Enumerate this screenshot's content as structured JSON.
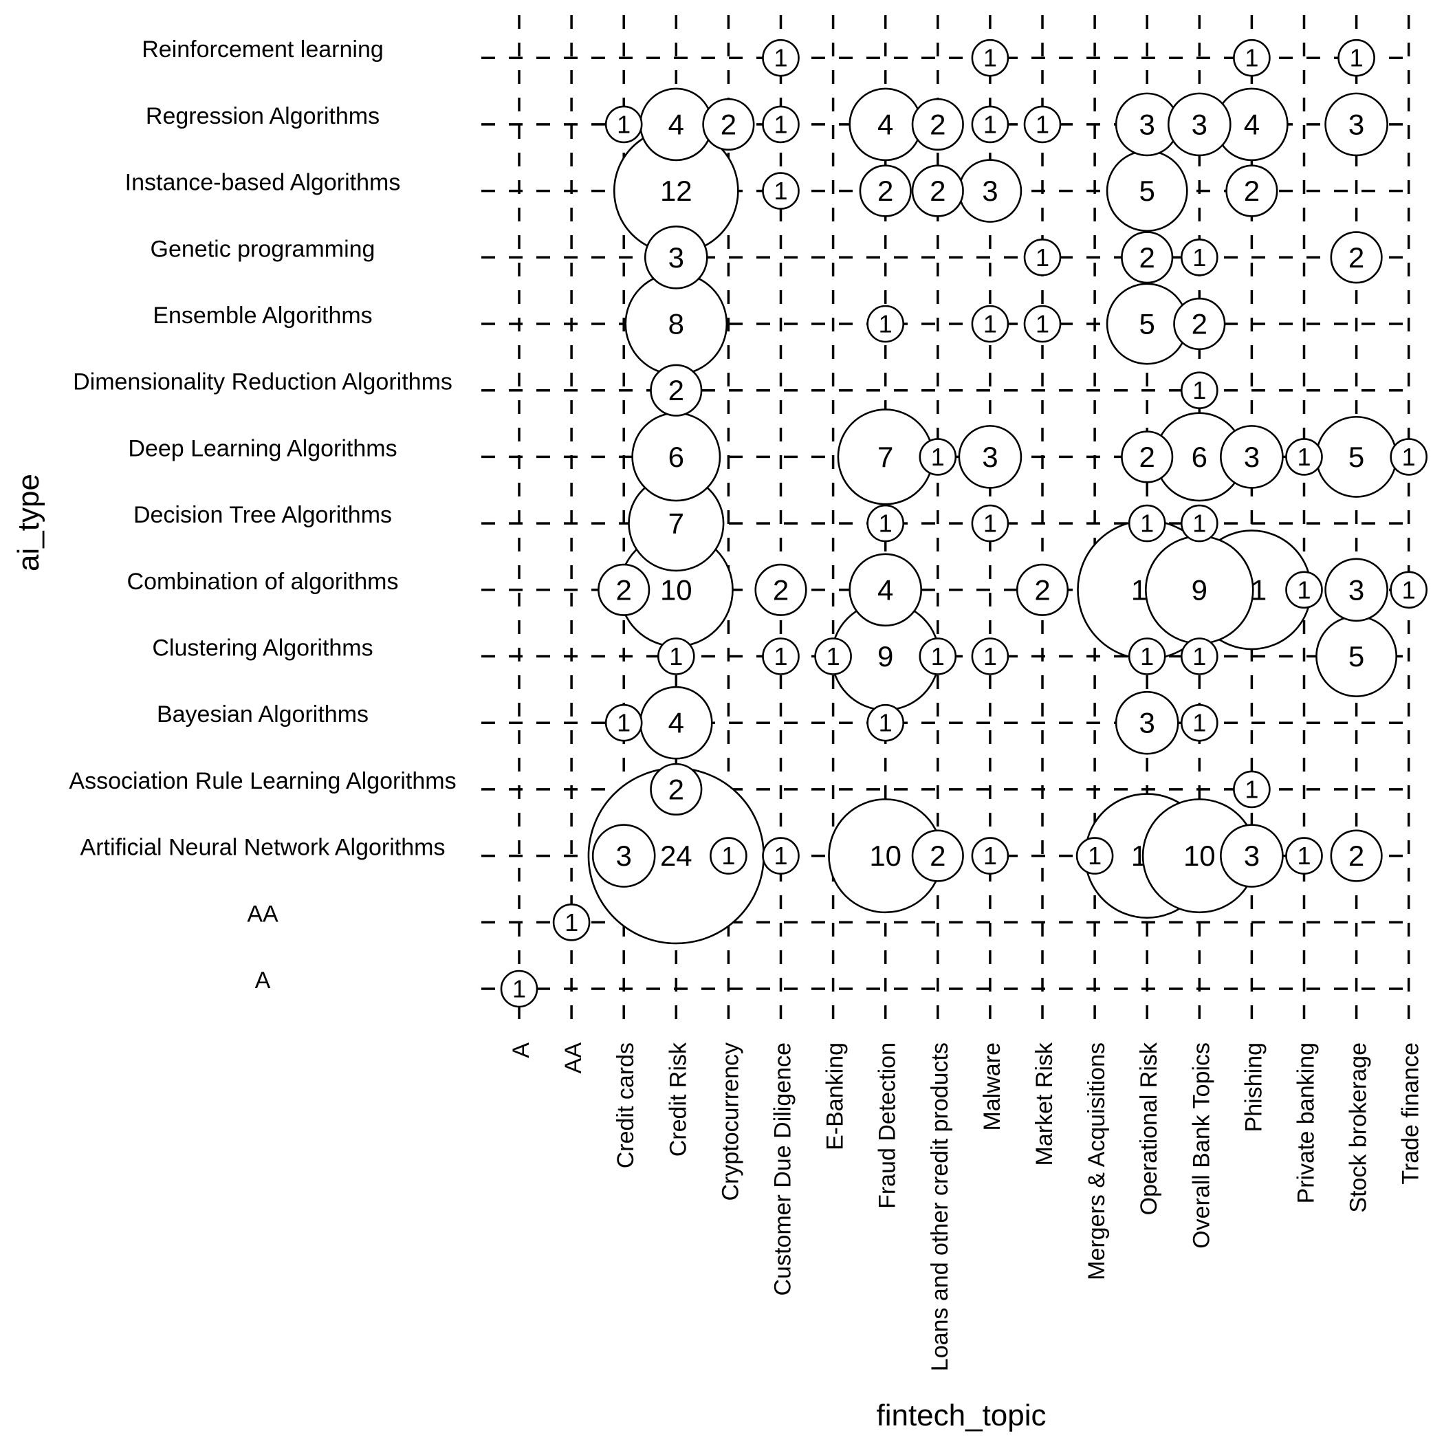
{
  "chart_data": {
    "type": "scatter",
    "xlabel": "fintech_topic",
    "ylabel": "ai_type",
    "x_categories": [
      "A",
      "AA",
      "Credit cards",
      "Credit Risk",
      "Cryptocurrency",
      "Customer Due Diligence",
      "E-Banking",
      "Fraud Detection",
      "Loans and other credit products",
      "Malware",
      "Market Risk",
      "Mergers & Acquisitions",
      "Operational Risk",
      "Overall Bank Topics",
      "Phishing",
      "Private banking",
      "Stock brokerage",
      "Trade finance"
    ],
    "y_categories": [
      "A",
      "AA",
      "Artificial Neural Network Algorithms",
      "Association Rule Learning Algorithms",
      "Bayesian Algorithms",
      "Clustering Algorithms",
      "Combination of algorithms",
      "Decision Tree Algorithms",
      "Deep Learning Algorithms",
      "Dimensionality Reduction Algorithms",
      "Ensemble Algorithms",
      "Genetic programming",
      "Instance-based Algorithms",
      "Regression Algorithms",
      "Reinforcement learning"
    ],
    "grid": true,
    "points": [
      {
        "x": "A",
        "y": "A",
        "count": 1
      },
      {
        "x": "AA",
        "y": "AA",
        "count": 1
      },
      {
        "x": "Credit Risk",
        "y": "Artificial Neural Network Algorithms",
        "count": 24
      },
      {
        "x": "Credit cards",
        "y": "Artificial Neural Network Algorithms",
        "count": 3
      },
      {
        "x": "Cryptocurrency",
        "y": "Artificial Neural Network Algorithms",
        "count": 1
      },
      {
        "x": "Customer Due Diligence",
        "y": "Artificial Neural Network Algorithms",
        "count": 1
      },
      {
        "x": "Fraud Detection",
        "y": "Artificial Neural Network Algorithms",
        "count": 10
      },
      {
        "x": "Loans and other credit products",
        "y": "Artificial Neural Network Algorithms",
        "count": 2
      },
      {
        "x": "Malware",
        "y": "Artificial Neural Network Algorithms",
        "count": 1
      },
      {
        "x": "Mergers & Acquisitions",
        "y": "Artificial Neural Network Algorithms",
        "count": 1
      },
      {
        "x": "Overall Bank Topics",
        "y": "Artificial Neural Network Algorithms",
        "count": 10
      },
      {
        "x": "Operational Risk",
        "y": "Artificial Neural Network Algorithms",
        "count": 12
      },
      {
        "x": "Phishing",
        "y": "Artificial Neural Network Algorithms",
        "count": 3
      },
      {
        "x": "Private banking",
        "y": "Artificial Neural Network Algorithms",
        "count": 1
      },
      {
        "x": "Stock brokerage",
        "y": "Artificial Neural Network Algorithms",
        "count": 2
      },
      {
        "x": "Credit Risk",
        "y": "Association Rule Learning Algorithms",
        "count": 2
      },
      {
        "x": "Phishing",
        "y": "Association Rule Learning Algorithms",
        "count": 1
      },
      {
        "x": "Credit cards",
        "y": "Bayesian Algorithms",
        "count": 1
      },
      {
        "x": "Credit Risk",
        "y": "Bayesian Algorithms",
        "count": 4
      },
      {
        "x": "Fraud Detection",
        "y": "Bayesian Algorithms",
        "count": 1
      },
      {
        "x": "Operational Risk",
        "y": "Bayesian Algorithms",
        "count": 3
      },
      {
        "x": "Overall Bank Topics",
        "y": "Bayesian Algorithms",
        "count": 1
      },
      {
        "x": "Credit Risk",
        "y": "Clustering Algorithms",
        "count": 1
      },
      {
        "x": "Customer Due Diligence",
        "y": "Clustering Algorithms",
        "count": 1
      },
      {
        "x": "E-Banking",
        "y": "Clustering Algorithms",
        "count": 1
      },
      {
        "x": "Loans and other credit products",
        "y": "Clustering Algorithms",
        "count": 1
      },
      {
        "x": "Fraud Detection",
        "y": "Clustering Algorithms",
        "count": 9
      },
      {
        "x": "Malware",
        "y": "Clustering Algorithms",
        "count": 1
      },
      {
        "x": "Operational Risk",
        "y": "Clustering Algorithms",
        "count": 1
      },
      {
        "x": "Overall Bank Topics",
        "y": "Clustering Algorithms",
        "count": 1
      },
      {
        "x": "Stock brokerage",
        "y": "Clustering Algorithms",
        "count": 5
      },
      {
        "x": "Credit Risk",
        "y": "Combination of algorithms",
        "count": 10
      },
      {
        "x": "Credit cards",
        "y": "Combination of algorithms",
        "count": 2
      },
      {
        "x": "Customer Due Diligence",
        "y": "Combination of algorithms",
        "count": 2
      },
      {
        "x": "Fraud Detection",
        "y": "Combination of algorithms",
        "count": 4
      },
      {
        "x": "Market Risk",
        "y": "Combination of algorithms",
        "count": 2
      },
      {
        "x": "Operational Risk",
        "y": "Combination of algorithms",
        "count": 15
      },
      {
        "x": "Phishing",
        "y": "Combination of algorithms",
        "count": 11
      },
      {
        "x": "Overall Bank Topics",
        "y": "Combination of algorithms",
        "count": 9
      },
      {
        "x": "Private banking",
        "y": "Combination of algorithms",
        "count": 1
      },
      {
        "x": "Stock brokerage",
        "y": "Combination of algorithms",
        "count": 3
      },
      {
        "x": "Trade finance",
        "y": "Combination of algorithms",
        "count": 1
      },
      {
        "x": "Credit Risk",
        "y": "Decision Tree Algorithms",
        "count": 7
      },
      {
        "x": "Fraud Detection",
        "y": "Decision Tree Algorithms",
        "count": 1
      },
      {
        "x": "Malware",
        "y": "Decision Tree Algorithms",
        "count": 1
      },
      {
        "x": "Operational Risk",
        "y": "Decision Tree Algorithms",
        "count": 1
      },
      {
        "x": "Overall Bank Topics",
        "y": "Decision Tree Algorithms",
        "count": 1
      },
      {
        "x": "Credit Risk",
        "y": "Deep Learning Algorithms",
        "count": 6
      },
      {
        "x": "Loans and other credit products",
        "y": "Deep Learning Algorithms",
        "count": 1
      },
      {
        "x": "Fraud Detection",
        "y": "Deep Learning Algorithms",
        "count": 7
      },
      {
        "x": "Malware",
        "y": "Deep Learning Algorithms",
        "count": 3
      },
      {
        "x": "Operational Risk",
        "y": "Deep Learning Algorithms",
        "count": 2
      },
      {
        "x": "Phishing",
        "y": "Deep Learning Algorithms",
        "count": 3
      },
      {
        "x": "Overall Bank Topics",
        "y": "Deep Learning Algorithms",
        "count": 6
      },
      {
        "x": "Private banking",
        "y": "Deep Learning Algorithms",
        "count": 1
      },
      {
        "x": "Trade finance",
        "y": "Deep Learning Algorithms",
        "count": 1
      },
      {
        "x": "Stock brokerage",
        "y": "Deep Learning Algorithms",
        "count": 5
      },
      {
        "x": "Credit Risk",
        "y": "Dimensionality Reduction Algorithms",
        "count": 2
      },
      {
        "x": "Overall Bank Topics",
        "y": "Dimensionality Reduction Algorithms",
        "count": 1
      },
      {
        "x": "Credit Risk",
        "y": "Ensemble Algorithms",
        "count": 8
      },
      {
        "x": "Fraud Detection",
        "y": "Ensemble Algorithms",
        "count": 1
      },
      {
        "x": "Malware",
        "y": "Ensemble Algorithms",
        "count": 1
      },
      {
        "x": "Market Risk",
        "y": "Ensemble Algorithms",
        "count": 1
      },
      {
        "x": "Operational Risk",
        "y": "Ensemble Algorithms",
        "count": 5
      },
      {
        "x": "Overall Bank Topics",
        "y": "Ensemble Algorithms",
        "count": 2
      },
      {
        "x": "Credit Risk",
        "y": "Genetic programming",
        "count": 3
      },
      {
        "x": "Market Risk",
        "y": "Genetic programming",
        "count": 1
      },
      {
        "x": "Operational Risk",
        "y": "Genetic programming",
        "count": 2
      },
      {
        "x": "Overall Bank Topics",
        "y": "Genetic programming",
        "count": 1
      },
      {
        "x": "Stock brokerage",
        "y": "Genetic programming",
        "count": 2
      },
      {
        "x": "Credit Risk",
        "y": "Instance-based Algorithms",
        "count": 12
      },
      {
        "x": "Customer Due Diligence",
        "y": "Instance-based Algorithms",
        "count": 1
      },
      {
        "x": "Fraud Detection",
        "y": "Instance-based Algorithms",
        "count": 2
      },
      {
        "x": "Loans and other credit products",
        "y": "Instance-based Algorithms",
        "count": 2
      },
      {
        "x": "Malware",
        "y": "Instance-based Algorithms",
        "count": 3
      },
      {
        "x": "Operational Risk",
        "y": "Instance-based Algorithms",
        "count": 5
      },
      {
        "x": "Phishing",
        "y": "Instance-based Algorithms",
        "count": 2
      },
      {
        "x": "Credit cards",
        "y": "Regression Algorithms",
        "count": 1
      },
      {
        "x": "Credit Risk",
        "y": "Regression Algorithms",
        "count": 4
      },
      {
        "x": "Cryptocurrency",
        "y": "Regression Algorithms",
        "count": 2
      },
      {
        "x": "Customer Due Diligence",
        "y": "Regression Algorithms",
        "count": 1
      },
      {
        "x": "Fraud Detection",
        "y": "Regression Algorithms",
        "count": 4
      },
      {
        "x": "Loans and other credit products",
        "y": "Regression Algorithms",
        "count": 2
      },
      {
        "x": "Malware",
        "y": "Regression Algorithms",
        "count": 1
      },
      {
        "x": "Market Risk",
        "y": "Regression Algorithms",
        "count": 1
      },
      {
        "x": "Operational Risk",
        "y": "Regression Algorithms",
        "count": 3
      },
      {
        "x": "Overall Bank Topics",
        "y": "Regression Algorithms",
        "count": 3
      },
      {
        "x": "Phishing",
        "y": "Regression Algorithms",
        "count": 4
      },
      {
        "x": "Stock brokerage",
        "y": "Regression Algorithms",
        "count": 3
      },
      {
        "x": "Customer Due Diligence",
        "y": "Reinforcement learning",
        "count": 1
      },
      {
        "x": "Malware",
        "y": "Reinforcement learning",
        "count": 1
      },
      {
        "x": "Phishing",
        "y": "Reinforcement learning",
        "count": 1
      },
      {
        "x": "Stock brokerage",
        "y": "Reinforcement learning",
        "count": 1
      }
    ]
  }
}
